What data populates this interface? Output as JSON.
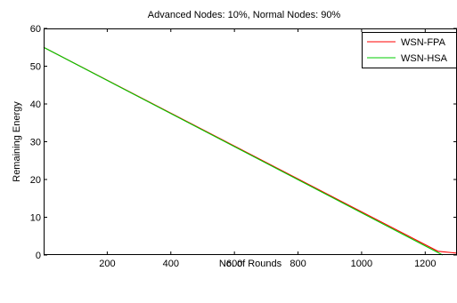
{
  "chart_data": {
    "type": "line",
    "title": "Advanced Nodes: 10%, Normal Nodes: 90%",
    "xlabel": "No. of Rounds",
    "ylabel": "Remaining Energy",
    "xlim": [
      0,
      1300
    ],
    "ylim": [
      0,
      60
    ],
    "xticks": [
      200,
      400,
      600,
      800,
      1000,
      1200
    ],
    "yticks": [
      0,
      10,
      20,
      30,
      40,
      50,
      60
    ],
    "grid": false,
    "legend_position": "top-right",
    "series": [
      {
        "name": "WSN-FPA",
        "color": "#ff0000",
        "points": [
          [
            0,
            55
          ],
          [
            1240,
            1
          ],
          [
            1300,
            0.5
          ]
        ]
      },
      {
        "name": "WSN-HSA",
        "color": "#00cc00",
        "points": [
          [
            0,
            55
          ],
          [
            1255,
            0
          ]
        ]
      }
    ]
  }
}
